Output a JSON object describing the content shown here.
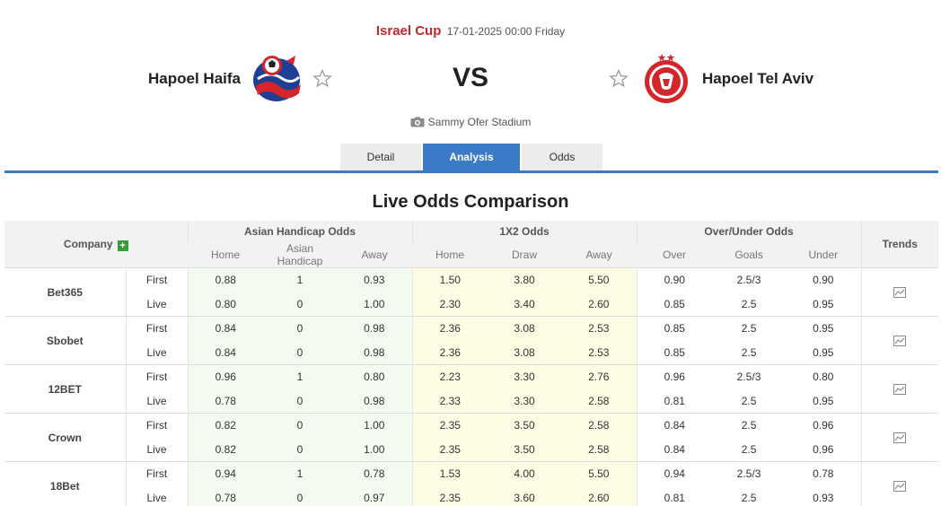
{
  "match": {
    "league": "Israel Cup",
    "datetime": "17-01-2025 00:00 Friday",
    "home_team": "Hapoel Haifa",
    "away_team": "Hapoel Tel Aviv",
    "vs": "VS",
    "stadium": "Sammy Ofer Stadium"
  },
  "tabs": [
    {
      "label": "Detail",
      "active": false
    },
    {
      "label": "Analysis",
      "active": true
    },
    {
      "label": "Odds",
      "active": false
    }
  ],
  "section_title": "Live Odds Comparison",
  "table": {
    "company_header": "Company",
    "groups": [
      "Asian Handicap Odds",
      "1X2 Odds",
      "Over/Under Odds"
    ],
    "trends_header": "Trends",
    "sub_headers": [
      "Home",
      "Asian Handicap",
      "Away",
      "Home",
      "Draw",
      "Away",
      "Over",
      "Goals",
      "Under"
    ],
    "rows": [
      {
        "company": "Bet365",
        "first": {
          "label": "First",
          "ah": [
            "0.88",
            "1",
            "0.93"
          ],
          "x12": [
            "1.50",
            "3.80",
            "5.50"
          ],
          "ou": [
            "0.90",
            "2.5/3",
            "0.90"
          ]
        },
        "live": {
          "label": "Live",
          "ah": [
            "0.80",
            "0",
            "1.00"
          ],
          "x12": [
            "2.30",
            "3.40",
            "2.60"
          ],
          "ou": [
            "0.85",
            "2.5",
            "0.95"
          ]
        }
      },
      {
        "company": "Sbobet",
        "first": {
          "label": "First",
          "ah": [
            "0.84",
            "0",
            "0.98"
          ],
          "x12": [
            "2.36",
            "3.08",
            "2.53"
          ],
          "ou": [
            "0.85",
            "2.5",
            "0.95"
          ]
        },
        "live": {
          "label": "Live",
          "ah": [
            "0.84",
            "0",
            "0.98"
          ],
          "x12": [
            "2.36",
            "3.08",
            "2.53"
          ],
          "ou": [
            "0.85",
            "2.5",
            "0.95"
          ]
        }
      },
      {
        "company": "12BET",
        "first": {
          "label": "First",
          "ah": [
            "0.96",
            "1",
            "0.80"
          ],
          "x12": [
            "2.23",
            "3.30",
            "2.76"
          ],
          "ou": [
            "0.96",
            "2.5/3",
            "0.80"
          ]
        },
        "live": {
          "label": "Live",
          "ah": [
            "0.78",
            "0",
            "0.98"
          ],
          "x12": [
            "2.33",
            "3.30",
            "2.58"
          ],
          "ou": [
            "0.81",
            "2.5",
            "0.95"
          ]
        }
      },
      {
        "company": "Crown",
        "first": {
          "label": "First",
          "ah": [
            "0.82",
            "0",
            "1.00"
          ],
          "x12": [
            "2.35",
            "3.50",
            "2.58"
          ],
          "ou": [
            "0.84",
            "2.5",
            "0.96"
          ]
        },
        "live": {
          "label": "Live",
          "ah": [
            "0.82",
            "0",
            "1.00"
          ],
          "x12": [
            "2.35",
            "3.50",
            "2.58"
          ],
          "ou": [
            "0.84",
            "2.5",
            "0.96"
          ]
        }
      },
      {
        "company": "18Bet",
        "first": {
          "label": "First",
          "ah": [
            "0.94",
            "1",
            "0.78"
          ],
          "x12": [
            "1.53",
            "4.00",
            "5.50"
          ],
          "ou": [
            "0.94",
            "2.5/3",
            "0.78"
          ]
        },
        "live": {
          "label": "Live",
          "ah": [
            "0.78",
            "0",
            "0.97"
          ],
          "x12": [
            "2.35",
            "3.60",
            "2.60"
          ],
          "ou": [
            "0.81",
            "2.5",
            "0.93"
          ]
        }
      }
    ]
  },
  "icons": {
    "favorite": "star-icon",
    "stadium": "camera-icon",
    "add_company": "plus-icon",
    "trend": "chart-icon"
  },
  "colors": {
    "accent": "#3b7ac6",
    "league": "#c1272d",
    "home_logo": "#1f3f95",
    "away_logo": "#d4252a",
    "asian_handicap_bg": "#f3fbf1",
    "x12_bg": "#fdfde6"
  }
}
